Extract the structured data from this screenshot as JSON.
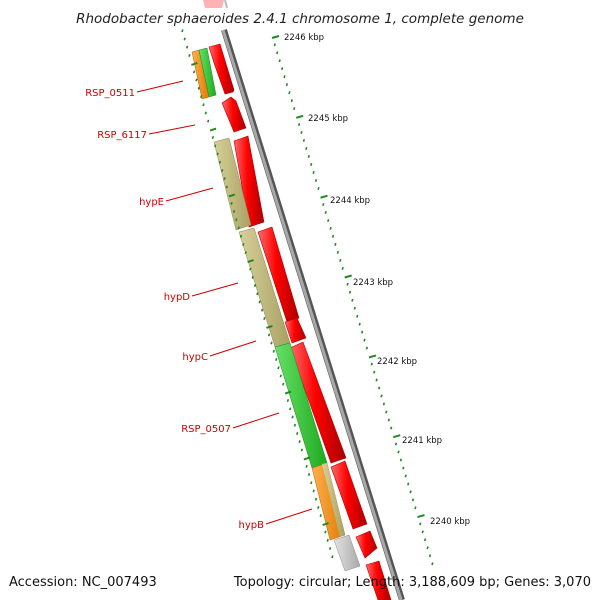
{
  "title": "Rhodobacter sphaeroides 2.4.1 chromosome 1, complete genome",
  "accession": "Accession: NC_007493",
  "topology": "Topology: circular; Length: 3,188,609 bp; Genes: 3,070",
  "ticks": [
    {
      "label": "2246 kbp"
    },
    {
      "label": "2245 kbp"
    },
    {
      "label": "2244 kbp"
    },
    {
      "label": "2243 kbp"
    },
    {
      "label": "2242 kbp"
    },
    {
      "label": "2241 kbp"
    },
    {
      "label": "2240 kbp"
    }
  ],
  "gene_labels": [
    {
      "name": "RSP_0511"
    },
    {
      "name": "RSP_6117"
    },
    {
      "name": "hypE"
    },
    {
      "name": "hypD"
    },
    {
      "name": "hypC"
    },
    {
      "name": "RSP_0507"
    },
    {
      "name": "hypB"
    }
  ],
  "colors": {
    "cds_forward": "#ff0000",
    "cds_forward_dark": "#b30000",
    "hyp_khaki": "#bfb77a",
    "rsp_green": "#33cc33",
    "orange": "#f7941d",
    "grey_feature": "#c8c8c8",
    "backbone": "#8c8c8c",
    "backbone_dark": "#555555",
    "tick_green": "#228822",
    "label_red": "#cc0000"
  }
}
